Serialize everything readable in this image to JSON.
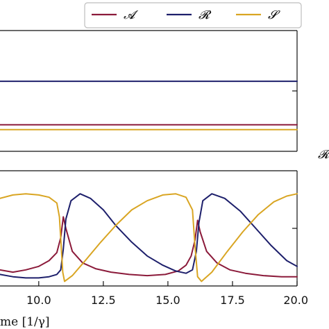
{
  "chart_data": [
    {
      "type": "line",
      "panel": "top",
      "series": [
        {
          "name": "𝓐",
          "color": "#8b1a3a",
          "x": [
            8.5,
            20.0
          ],
          "y": [
            0.22,
            0.22
          ]
        },
        {
          "name": "𝓡",
          "color": "#1d1f6b",
          "x": [
            8.5,
            20.0
          ],
          "y": [
            0.58,
            0.58
          ]
        },
        {
          "name": "𝓢",
          "color": "#d9a522",
          "x": [
            8.5,
            20.0
          ],
          "y": [
            0.18,
            0.18
          ]
        }
      ],
      "xlim": [
        8.5,
        20.0
      ],
      "ylim": [
        0.0,
        1.0
      ],
      "legend": {
        "placement": "top-right",
        "entries": [
          "𝓐",
          "𝓡",
          "𝓢"
        ]
      },
      "edge_label": "𝓡"
    },
    {
      "type": "line",
      "panel": "bottom",
      "series": [
        {
          "name": "𝓐",
          "color": "#8b1a3a",
          "x": [
            8.5,
            9.0,
            9.5,
            10.0,
            10.4,
            10.7,
            10.85,
            10.95,
            11.05,
            11.3,
            11.7,
            12.2,
            12.8,
            13.5,
            14.2,
            14.9,
            15.4,
            15.7,
            15.9,
            16.05,
            16.15,
            16.25,
            16.5,
            16.9,
            17.4,
            18.0,
            18.7,
            19.4,
            20.0
          ],
          "y": [
            0.14,
            0.12,
            0.14,
            0.17,
            0.22,
            0.29,
            0.42,
            0.6,
            0.5,
            0.3,
            0.2,
            0.15,
            0.12,
            0.1,
            0.09,
            0.1,
            0.13,
            0.18,
            0.26,
            0.4,
            0.57,
            0.47,
            0.3,
            0.2,
            0.14,
            0.11,
            0.09,
            0.08,
            0.08
          ]
        },
        {
          "name": "𝓡",
          "color": "#1d1f6b",
          "x": [
            8.5,
            9.0,
            9.5,
            10.0,
            10.4,
            10.7,
            10.85,
            10.95,
            11.05,
            11.25,
            11.6,
            12.0,
            12.5,
            13.0,
            13.6,
            14.2,
            14.8,
            15.3,
            15.7,
            15.95,
            16.1,
            16.2,
            16.35,
            16.7,
            17.2,
            17.8,
            18.4,
            19.0,
            19.6,
            20.0
          ],
          "y": [
            0.1,
            0.08,
            0.07,
            0.07,
            0.08,
            0.1,
            0.14,
            0.32,
            0.58,
            0.74,
            0.8,
            0.76,
            0.66,
            0.52,
            0.38,
            0.26,
            0.18,
            0.13,
            0.11,
            0.14,
            0.3,
            0.55,
            0.74,
            0.8,
            0.76,
            0.65,
            0.5,
            0.35,
            0.22,
            0.17
          ]
        },
        {
          "name": "𝓢",
          "color": "#d9a522",
          "x": [
            8.5,
            9.0,
            9.5,
            10.0,
            10.4,
            10.7,
            10.8,
            10.88,
            10.93,
            11.0,
            11.3,
            11.8,
            12.4,
            13.0,
            13.6,
            14.2,
            14.8,
            15.3,
            15.7,
            15.95,
            16.05,
            16.15,
            16.3,
            16.7,
            17.3,
            17.9,
            18.5,
            19.1,
            19.6,
            20.0
          ],
          "y": [
            0.76,
            0.79,
            0.8,
            0.79,
            0.77,
            0.72,
            0.6,
            0.3,
            0.12,
            0.04,
            0.09,
            0.22,
            0.38,
            0.53,
            0.66,
            0.74,
            0.79,
            0.8,
            0.77,
            0.66,
            0.34,
            0.08,
            0.04,
            0.12,
            0.3,
            0.47,
            0.62,
            0.73,
            0.78,
            0.8
          ]
        }
      ],
      "x_ticks": [
        10.0,
        12.5,
        15.0,
        17.5,
        20.0
      ],
      "x_tick_labels": [
        "10.0",
        "12.5",
        "15.0",
        "17.5",
        "20.0"
      ],
      "xlabel": "me [1/γ]",
      "xlim": [
        8.5,
        20.0
      ],
      "ylim": [
        0.0,
        1.0
      ]
    }
  ]
}
